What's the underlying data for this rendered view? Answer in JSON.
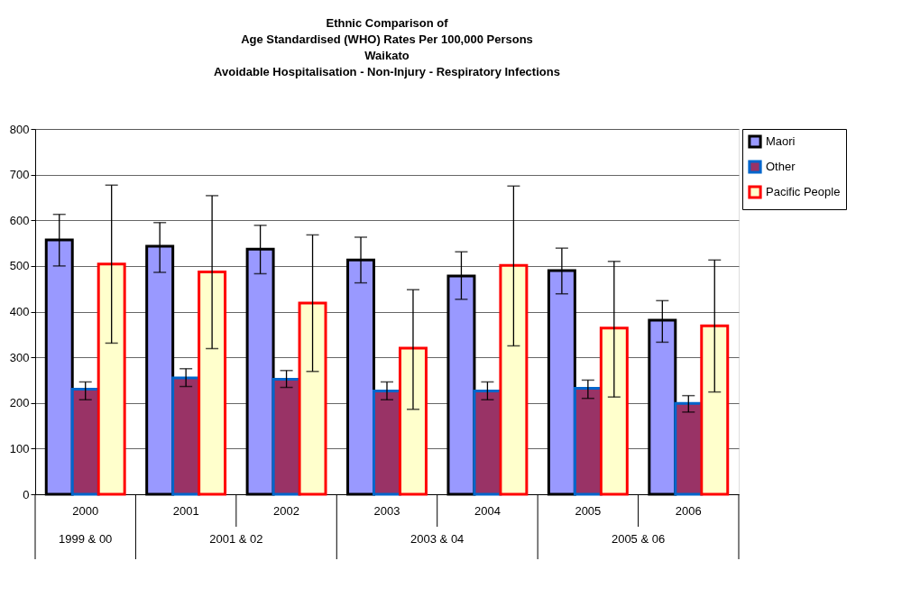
{
  "chart_data": {
    "type": "bar",
    "title": "Ethnic Comparison of\nAge Standardised (WHO) Rates Per 100,000 Persons\nWaikato\nAvoidable Hospitalisation - Non-Injury - Respiratory Infections",
    "categories": [
      "2000",
      "2001",
      "2002",
      "2003",
      "2004",
      "2005",
      "2006"
    ],
    "series": [
      {
        "name": "Maori",
        "color": "#9999ff",
        "values": [
          557,
          543,
          537,
          513,
          478,
          490,
          381
        ],
        "errors": [
          [
            500,
            613
          ],
          [
            486,
            595
          ],
          [
            483,
            589
          ],
          [
            463,
            563
          ],
          [
            427,
            531
          ],
          [
            439,
            539
          ],
          [
            333,
            424
          ]
        ]
      },
      {
        "name": "Other",
        "color": "#993366",
        "values": [
          230,
          255,
          252,
          226,
          226,
          232,
          199
        ],
        "errors": [
          [
            207,
            246
          ],
          [
            236,
            275
          ],
          [
            234,
            271
          ],
          [
            207,
            246
          ],
          [
            207,
            246
          ],
          [
            210,
            250
          ],
          [
            180,
            216
          ]
        ]
      },
      {
        "name": "Pacific People",
        "color": "#ffffcc",
        "values": [
          504,
          487,
          419,
          320,
          501,
          364,
          369
        ],
        "errors": [
          [
            331,
            677
          ],
          [
            319,
            654
          ],
          [
            269,
            568
          ],
          [
            186,
            448
          ],
          [
            325,
            675
          ],
          [
            213,
            510
          ],
          [
            224,
            513
          ]
        ]
      }
    ],
    "ylim": [
      0,
      800
    ],
    "yticks": [
      0,
      100,
      200,
      300,
      400,
      500,
      600,
      700,
      800
    ],
    "grid": "y",
    "legend": "right",
    "annotations": [
      "1999 & 00",
      "2001 & 02",
      "2003 & 04",
      "2005 & 06"
    ]
  }
}
